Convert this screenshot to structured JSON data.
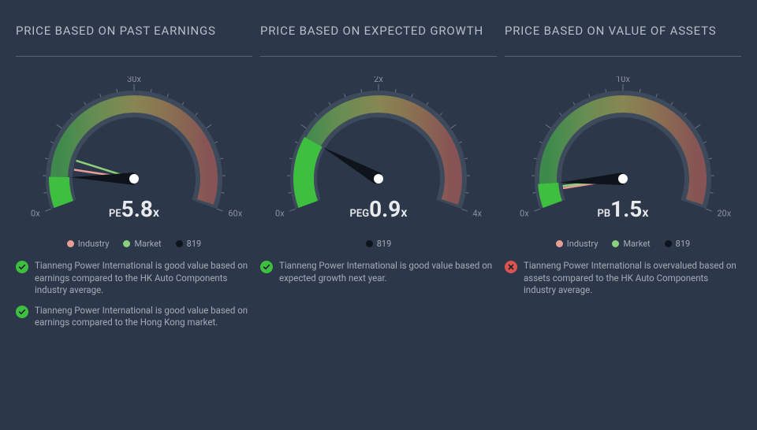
{
  "background_color": "#2c3849",
  "panels": [
    {
      "title": "PRICE BASED ON PAST EARNINGS",
      "gauge": {
        "min_label": "0x",
        "mid_label": "30x",
        "max_label": "60x",
        "metric_name": "PE",
        "metric_value": "5.8",
        "metric_suffix": "x",
        "fraction": 0.097,
        "markers": [
          {
            "fraction": 0.13,
            "color": "#e89d97"
          },
          {
            "fraction": 0.17,
            "color": "#8bd17c"
          }
        ]
      },
      "legend": [
        {
          "label": "Industry",
          "color": "#e89d97"
        },
        {
          "label": "Market",
          "color": "#8bd17c"
        },
        {
          "label": "819",
          "color": "#0f141c"
        }
      ],
      "remarks": [
        {
          "ok": true,
          "text": "Tianneng Power International is good value based on earnings compared to the HK Auto Components industry average."
        },
        {
          "ok": true,
          "text": "Tianneng Power International is good value based on earnings compared to the Hong Kong market."
        }
      ]
    },
    {
      "title": "PRICE BASED ON EXPECTED GROWTH",
      "gauge": {
        "min_label": "0x",
        "mid_label": "2x",
        "max_label": "4x",
        "metric_name": "PEG",
        "metric_value": "0.9",
        "metric_suffix": "x",
        "fraction": 0.225,
        "markers": []
      },
      "legend": [
        {
          "label": "819",
          "color": "#0f141c"
        }
      ],
      "remarks": [
        {
          "ok": true,
          "text": "Tianneng Power International is good value based on expected growth next year."
        }
      ]
    },
    {
      "title": "PRICE BASED ON VALUE OF ASSETS",
      "gauge": {
        "min_label": "0x",
        "mid_label": "10x",
        "max_label": "20x",
        "metric_name": "PB",
        "metric_value": "1.5",
        "metric_suffix": "x",
        "fraction": 0.075,
        "markers": [
          {
            "fraction": 0.05,
            "color": "#e89d97"
          },
          {
            "fraction": 0.06,
            "color": "#8bd17c"
          }
        ]
      },
      "legend": [
        {
          "label": "Industry",
          "color": "#e89d97"
        },
        {
          "label": "Market",
          "color": "#8bd17c"
        },
        {
          "label": "819",
          "color": "#0f141c"
        }
      ],
      "remarks": [
        {
          "ok": false,
          "text": "Tianneng Power International is overvalued based on assets compared to the HK Auto Components industry average."
        }
      ]
    }
  ],
  "style": {
    "gauge_track_color": "#3d4a5c",
    "gauge_gradient": [
      "#3fbf3f",
      "#8bc34a",
      "#c5b84a",
      "#c98b4a",
      "#c35a4d"
    ],
    "needle_color": "#0f141c",
    "needle_hub": "#ffffff",
    "tick_color": "#6b7585",
    "ok_badge_bg": "#3fbf3f",
    "ok_badge_fg": "#1b2330",
    "bad_badge_bg": "#d9534f",
    "bad_badge_fg": "#1b2330",
    "title_underline": "#5a6373"
  }
}
